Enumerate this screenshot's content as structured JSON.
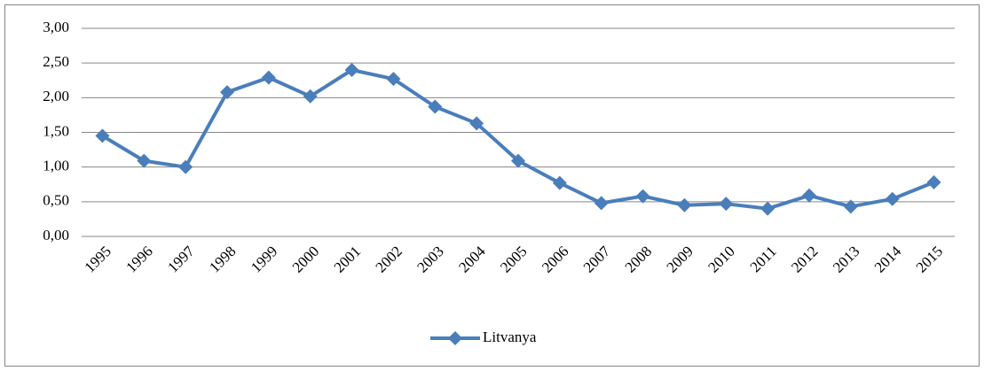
{
  "chart_data": {
    "type": "line",
    "categories": [
      "1995",
      "1996",
      "1997",
      "1998",
      "1999",
      "2000",
      "2001",
      "2002",
      "2003",
      "2004",
      "2005",
      "2006",
      "2007",
      "2008",
      "2009",
      "2010",
      "2011",
      "2012",
      "2013",
      "2014",
      "2015"
    ],
    "series": [
      {
        "name": "Litvanya",
        "color": "#4a7ebb",
        "values": [
          1.45,
          1.09,
          1.0,
          2.08,
          2.29,
          2.02,
          2.4,
          2.27,
          1.87,
          1.63,
          1.09,
          0.77,
          0.48,
          0.58,
          0.45,
          0.47,
          0.4,
          0.59,
          0.43,
          0.54,
          0.78
        ]
      }
    ],
    "ylim": [
      0,
      3
    ],
    "yticks": [
      {
        "value": 0,
        "label": "0,00"
      },
      {
        "value": 0.5,
        "label": "0,50"
      },
      {
        "value": 1,
        "label": "1,00"
      },
      {
        "value": 1.5,
        "label": "1,50"
      },
      {
        "value": 2,
        "label": "2,00"
      },
      {
        "value": 2.5,
        "label": "2,50"
      },
      {
        "value": 3,
        "label": "3,00"
      }
    ],
    "grid": true,
    "legend": "bottom"
  }
}
